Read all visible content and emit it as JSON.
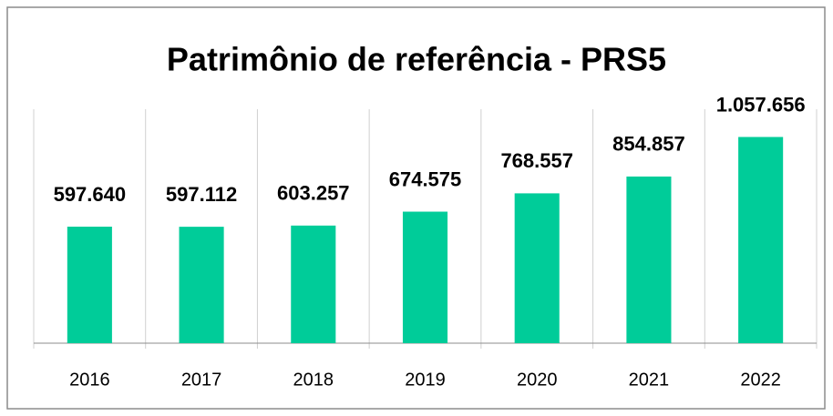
{
  "chart_data": {
    "type": "bar",
    "title": "Patrimônio de referência - PRS5",
    "categories": [
      "2016",
      "2017",
      "2018",
      "2019",
      "2020",
      "2021",
      "2022"
    ],
    "values": [
      597640,
      597112,
      603257,
      674575,
      768557,
      854857,
      1057656
    ],
    "value_labels": [
      "597.640",
      "597.112",
      "603.257",
      "674.575",
      "768.557",
      "854.857",
      "1.057.656"
    ],
    "color": "#00cc99",
    "ylim": [
      0,
      1200000
    ]
  }
}
